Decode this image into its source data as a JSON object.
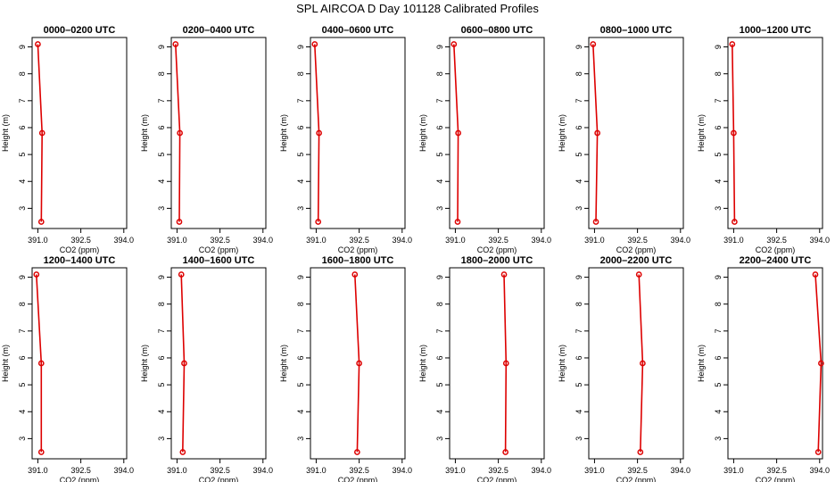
{
  "title": "SPL AIRCOA D  Day 101128  Calibrated Profiles",
  "colors": {
    "series": "#dd0000",
    "axis": "#000000",
    "background": "#ffffff"
  },
  "chart_data": {
    "type": "line",
    "xlabel": "CO2 (ppm)",
    "ylabel": "Height (m)",
    "xlim": [
      390.8,
      394.1
    ],
    "ylim": [
      2.25,
      9.35
    ],
    "xticks": [
      "391.0",
      "392.5",
      "394.0"
    ],
    "yticks": [
      "3",
      "4",
      "5",
      "6",
      "7",
      "8",
      "9"
    ],
    "heights": [
      9.1,
      5.8,
      2.5
    ],
    "panels": [
      {
        "title": "0000–0200 UTC",
        "co2": [
          391.0,
          391.15,
          391.12
        ]
      },
      {
        "title": "0200–0400 UTC",
        "co2": [
          390.95,
          391.1,
          391.08
        ]
      },
      {
        "title": "0400–0600 UTC",
        "co2": [
          390.95,
          391.1,
          391.07
        ]
      },
      {
        "title": "0600–0800 UTC",
        "co2": [
          390.95,
          391.1,
          391.08
        ]
      },
      {
        "title": "0800–1000 UTC",
        "co2": [
          390.95,
          391.1,
          391.05
        ]
      },
      {
        "title": "1000–1200 UTC",
        "co2": [
          390.95,
          391.0,
          391.03
        ]
      },
      {
        "title": "1200–1400 UTC",
        "co2": [
          390.95,
          391.12,
          391.12
        ]
      },
      {
        "title": "1400–1600 UTC",
        "co2": [
          391.15,
          391.25,
          391.2
        ]
      },
      {
        "title": "1600–1800 UTC",
        "co2": [
          392.35,
          392.5,
          392.43
        ]
      },
      {
        "title": "1800–2000 UTC",
        "co2": [
          392.7,
          392.77,
          392.75
        ]
      },
      {
        "title": "2000–2200 UTC",
        "co2": [
          392.55,
          392.68,
          392.6
        ]
      },
      {
        "title": "2200–2400 UTC",
        "co2": [
          393.85,
          394.05,
          393.95
        ]
      }
    ]
  }
}
